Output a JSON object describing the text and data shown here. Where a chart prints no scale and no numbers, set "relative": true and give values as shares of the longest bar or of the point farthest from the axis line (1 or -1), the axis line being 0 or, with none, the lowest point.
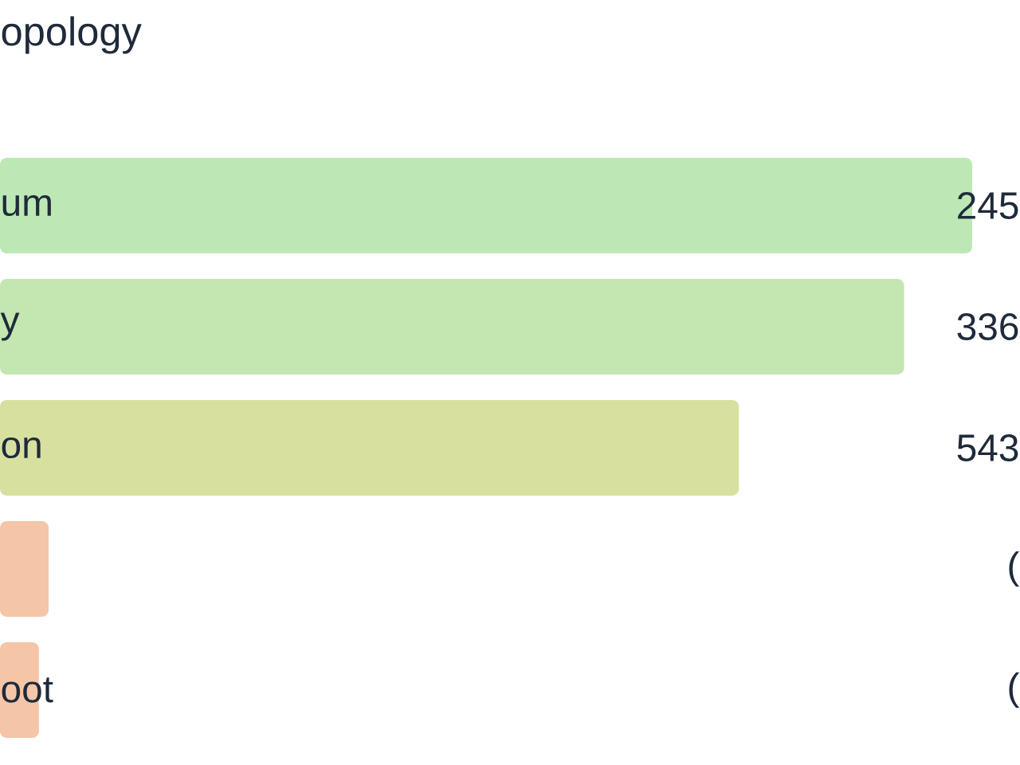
{
  "chart_data": {
    "type": "bar",
    "orientation": "horizontal",
    "relative": true,
    "title": "opology",
    "categories": [
      "um",
      "y",
      "on",
      null,
      "oot"
    ],
    "values": [
      1,
      0.93,
      0.76,
      0.05,
      0.04
    ],
    "colors": [
      "#bde8b5",
      "#c4e6b0",
      "#d8e0a0",
      "#f5c5a8",
      "#f5c5a8"
    ],
    "annotations": [
      "245",
      "336",
      "543",
      "(",
      "("
    ]
  }
}
